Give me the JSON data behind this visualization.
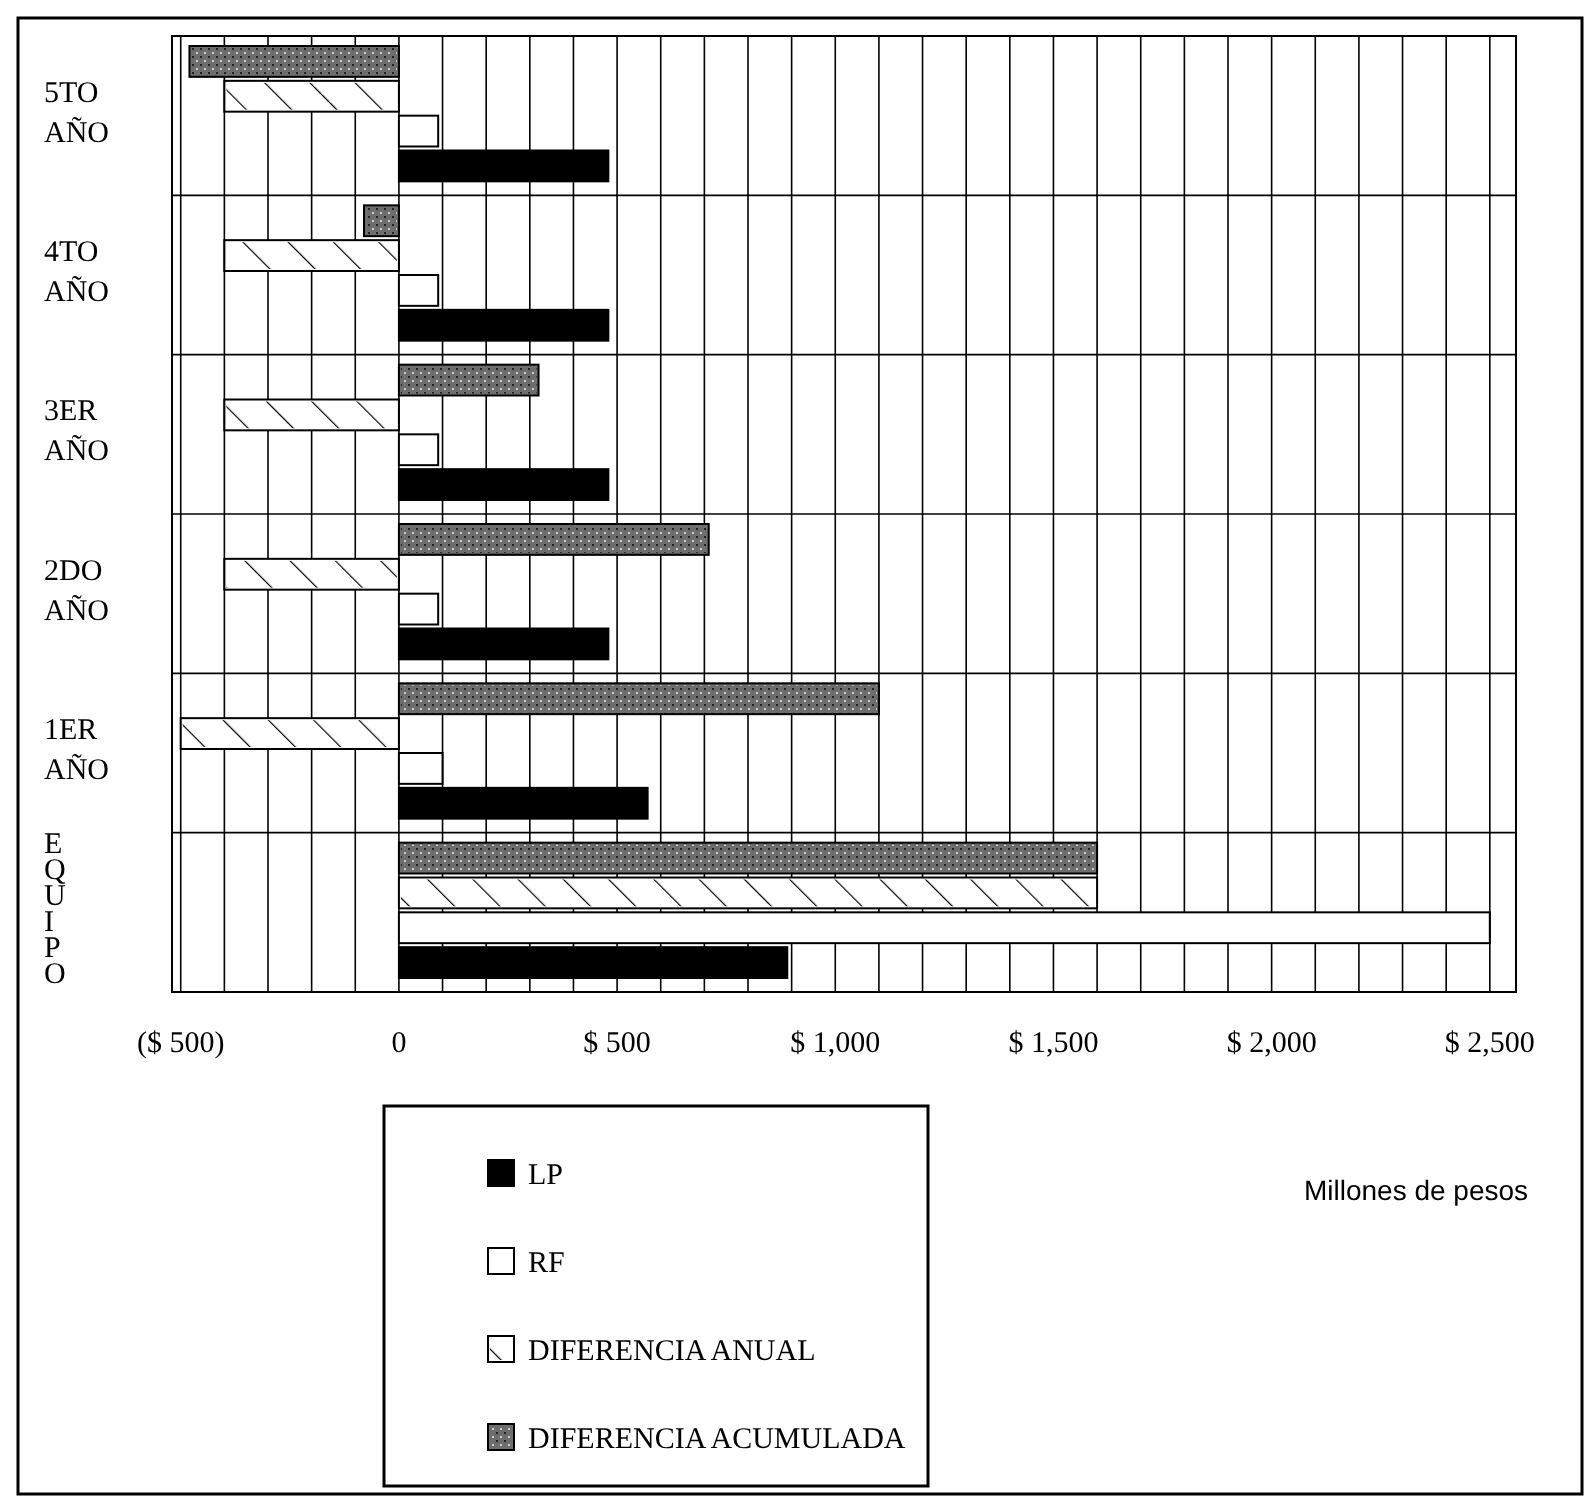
{
  "chart_data": {
    "type": "bar",
    "orientation": "horizontal",
    "categories": [
      "5TO AÑO",
      "4TO AÑO",
      "3ER AÑO",
      "2DO AÑO",
      "1ER AÑO",
      "EQUIPO"
    ],
    "series": [
      {
        "name": "DIFERENCIA ACUMULADA",
        "color": "#6e6e6e",
        "values": [
          -480,
          -80,
          320,
          710,
          1100,
          1600
        ]
      },
      {
        "name": "DIFERENCIA ANUAL",
        "color": "#ffffff",
        "values": [
          -400,
          -400,
          -400,
          -400,
          -500,
          1600
        ]
      },
      {
        "name": "RF",
        "color": "#ffffff",
        "values": [
          90,
          90,
          90,
          90,
          100,
          2500
        ]
      },
      {
        "name": "LP",
        "color": "#000000",
        "values": [
          480,
          480,
          480,
          480,
          570,
          890
        ]
      }
    ],
    "xlim": [
      -520,
      2560
    ],
    "xticks": [
      {
        "value": -500,
        "label": "($ 500)"
      },
      {
        "value": -400,
        "label": null
      },
      {
        "value": -300,
        "label": null
      },
      {
        "value": -200,
        "label": null
      },
      {
        "value": -100,
        "label": null
      },
      0,
      {
        "value": 100,
        "label": null
      },
      {
        "value": 200,
        "label": null
      },
      {
        "value": 300,
        "label": null
      },
      {
        "value": 400,
        "label": null
      },
      {
        "value": 500,
        "label": "$ 500"
      },
      {
        "value": 600,
        "label": null
      },
      {
        "value": 700,
        "label": null
      },
      {
        "value": 800,
        "label": null
      },
      {
        "value": 900,
        "label": null
      },
      {
        "value": 1000,
        "label": "$ 1,000"
      },
      {
        "value": 1100,
        "label": null
      },
      {
        "value": 1200,
        "label": null
      },
      {
        "value": 1300,
        "label": null
      },
      {
        "value": 1400,
        "label": null
      },
      {
        "value": 1500,
        "label": "$ 1,500"
      },
      {
        "value": 1600,
        "label": null
      },
      {
        "value": 1700,
        "label": null
      },
      {
        "value": 1800,
        "label": null
      },
      {
        "value": 1900,
        "label": null
      },
      {
        "value": 2000,
        "label": "$ 2,000"
      },
      {
        "value": 2100,
        "label": null
      },
      {
        "value": 2200,
        "label": null
      },
      {
        "value": 2300,
        "label": null
      },
      {
        "value": 2400,
        "label": null
      },
      {
        "value": 2500,
        "label": "$ 2,500"
      }
    ],
    "xlabel": "Millones de pesos",
    "grid": true,
    "legend": "bottom"
  }
}
